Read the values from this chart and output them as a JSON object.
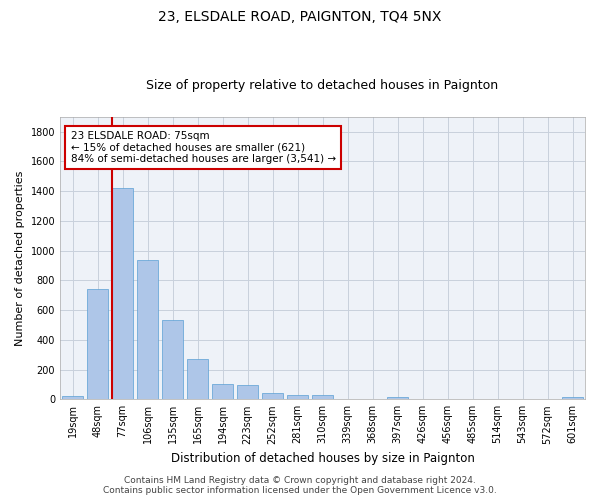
{
  "title": "23, ELSDALE ROAD, PAIGNTON, TQ4 5NX",
  "subtitle": "Size of property relative to detached houses in Paignton",
  "xlabel": "Distribution of detached houses by size in Paignton",
  "ylabel": "Number of detached properties",
  "categories": [
    "19sqm",
    "48sqm",
    "77sqm",
    "106sqm",
    "135sqm",
    "165sqm",
    "194sqm",
    "223sqm",
    "252sqm",
    "281sqm",
    "310sqm",
    "339sqm",
    "368sqm",
    "397sqm",
    "426sqm",
    "456sqm",
    "485sqm",
    "514sqm",
    "543sqm",
    "572sqm",
    "601sqm"
  ],
  "values": [
    22,
    745,
    1420,
    940,
    535,
    268,
    105,
    95,
    40,
    28,
    28,
    5,
    5,
    15,
    2,
    2,
    2,
    2,
    2,
    2,
    15
  ],
  "bar_color": "#aec6e8",
  "bar_edge_color": "#5a9fd4",
  "highlight_index": 2,
  "highlight_line_color": "#cc0000",
  "annotation_line1": "23 ELSDALE ROAD: 75sqm",
  "annotation_line2": "← 15% of detached houses are smaller (621)",
  "annotation_line3": "84% of semi-detached houses are larger (3,541) →",
  "annotation_box_color": "#ffffff",
  "annotation_box_edge_color": "#cc0000",
  "ylim": [
    0,
    1900
  ],
  "yticks": [
    0,
    200,
    400,
    600,
    800,
    1000,
    1200,
    1400,
    1600,
    1800
  ],
  "footer": "Contains HM Land Registry data © Crown copyright and database right 2024.\nContains public sector information licensed under the Open Government Licence v3.0.",
  "bg_color": "#ffffff",
  "plot_bg_color": "#eef2f8",
  "grid_color": "#c8d0dc",
  "title_fontsize": 10,
  "subtitle_fontsize": 9,
  "xlabel_fontsize": 8.5,
  "ylabel_fontsize": 8,
  "tick_fontsize": 7,
  "footer_fontsize": 6.5
}
